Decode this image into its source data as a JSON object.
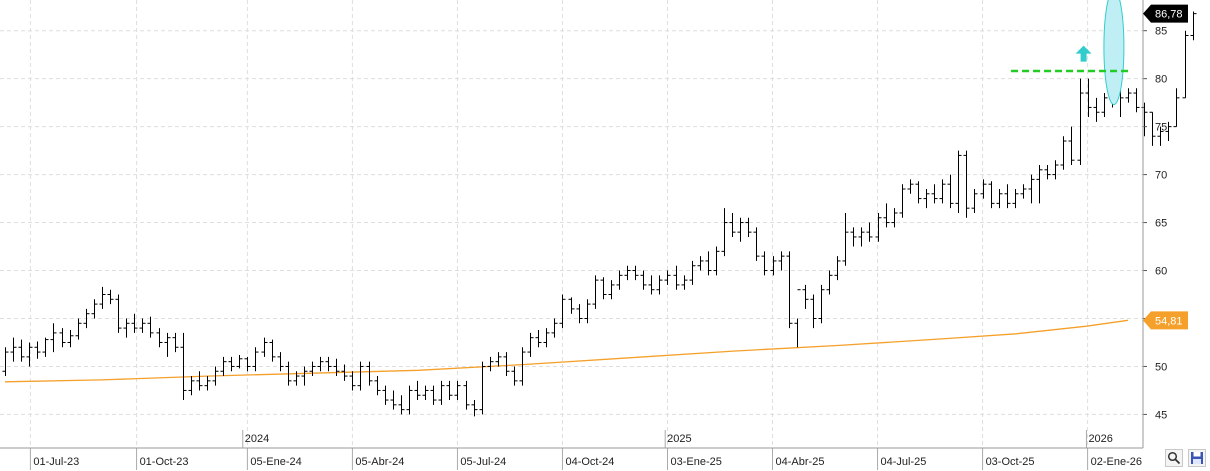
{
  "chart_data": {
    "type": "bar",
    "subtype": "ohlc-weekly",
    "y_axis": {
      "position": "right",
      "ylim": [
        41.5,
        88.2
      ],
      "ticks": [
        45,
        50,
        55,
        60,
        65,
        70,
        75,
        80,
        85
      ]
    },
    "x_axis": {
      "tick_labels": [
        "01-Jul-23",
        "01-Oct-23",
        "05-Ene-24",
        "05-Abr-24",
        "05-Jul-24",
        "04-Oct-24",
        "03-Ene-25",
        "04-Abr-25",
        "04-Jul-25",
        "03-Oct-25",
        "02-Ene-26"
      ],
      "year_labels": [
        "2024",
        "2025",
        "2026"
      ],
      "start": "2023-06-09",
      "end": "2026-02-06"
    },
    "grid": true,
    "last_price": {
      "label": "86,78",
      "value": 86.78,
      "color": "#000000"
    },
    "moving_average": {
      "label": "54,81",
      "value": 54.81,
      "color": "#f5a02a",
      "points": [
        {
          "x": "2023-06-09",
          "y": 48.4
        },
        {
          "x": "2023-09-01",
          "y": 48.6
        },
        {
          "x": "2023-12-01",
          "y": 49.0
        },
        {
          "x": "2024-03-01",
          "y": 49.3
        },
        {
          "x": "2024-06-01",
          "y": 49.6
        },
        {
          "x": "2024-09-01",
          "y": 50.2
        },
        {
          "x": "2024-12-01",
          "y": 50.9
        },
        {
          "x": "2025-03-01",
          "y": 51.6
        },
        {
          "x": "2025-06-01",
          "y": 52.2
        },
        {
          "x": "2025-09-01",
          "y": 52.9
        },
        {
          "x": "2025-11-01",
          "y": 53.4
        },
        {
          "x": "2026-01-01",
          "y": 54.2
        },
        {
          "x": "2026-02-06",
          "y": 54.81
        }
      ]
    },
    "bars_x": {
      "start": "2023-06-09",
      "interval_days": 7
    },
    "bars": [
      [
        49.5,
        52.0,
        49.0,
        51.5
      ],
      [
        51.5,
        53.0,
        50.5,
        52.0
      ],
      [
        52.0,
        52.8,
        50.5,
        51.0
      ],
      [
        51.0,
        52.5,
        50.0,
        52.0
      ],
      [
        52.0,
        52.6,
        50.8,
        51.5
      ],
      [
        51.5,
        53.0,
        51.0,
        52.8
      ],
      [
        52.8,
        54.5,
        51.5,
        53.5
      ],
      [
        53.5,
        54.0,
        52.0,
        52.5
      ],
      [
        52.5,
        53.8,
        52.0,
        53.2
      ],
      [
        53.2,
        55.0,
        52.8,
        54.5
      ],
      [
        54.5,
        56.0,
        54.0,
        55.5
      ],
      [
        55.5,
        57.0,
        55.0,
        56.5
      ],
      [
        56.5,
        58.3,
        56.0,
        57.5
      ],
      [
        57.5,
        58.0,
        56.5,
        57.0
      ],
      [
        57.0,
        57.5,
        53.5,
        54.0
      ],
      [
        54.0,
        55.0,
        53.0,
        54.5
      ],
      [
        54.5,
        55.5,
        53.5,
        54.0
      ],
      [
        54.0,
        55.0,
        53.5,
        54.5
      ],
      [
        54.5,
        55.2,
        53.0,
        53.5
      ],
      [
        53.5,
        54.0,
        52.0,
        52.5
      ],
      [
        52.5,
        53.5,
        51.0,
        53.0
      ],
      [
        53.0,
        53.5,
        51.5,
        52.0
      ],
      [
        52.0,
        53.5,
        46.5,
        47.5
      ],
      [
        47.5,
        49.0,
        47.0,
        48.5
      ],
      [
        48.5,
        49.5,
        47.5,
        48.0
      ],
      [
        48.0,
        49.0,
        47.5,
        48.5
      ],
      [
        48.5,
        50.0,
        48.0,
        49.5
      ],
      [
        49.5,
        51.0,
        49.0,
        50.5
      ],
      [
        50.5,
        51.0,
        49.5,
        50.0
      ],
      [
        50.0,
        51.2,
        49.8,
        50.8
      ],
      [
        50.8,
        51.0,
        49.5,
        50.0
      ],
      [
        50.0,
        52.0,
        49.5,
        51.5
      ],
      [
        51.5,
        53.0,
        51.0,
        52.5
      ],
      [
        52.5,
        52.8,
        50.5,
        51.0
      ],
      [
        51.0,
        51.5,
        49.5,
        50.0
      ],
      [
        50.0,
        50.5,
        48.0,
        48.5
      ],
      [
        48.5,
        49.5,
        48.0,
        49.0
      ],
      [
        49.0,
        50.0,
        48.0,
        49.5
      ],
      [
        49.5,
        50.5,
        49.0,
        50.0
      ],
      [
        50.0,
        51.0,
        49.5,
        50.5
      ],
      [
        50.5,
        51.0,
        49.5,
        50.0
      ],
      [
        50.0,
        50.8,
        49.0,
        49.5
      ],
      [
        49.5,
        50.2,
        48.5,
        49.0
      ],
      [
        49.0,
        49.5,
        47.5,
        48.0
      ],
      [
        48.0,
        50.5,
        47.5,
        50.0
      ],
      [
        50.0,
        50.5,
        48.0,
        48.5
      ],
      [
        48.5,
        49.0,
        47.0,
        47.5
      ],
      [
        47.5,
        48.0,
        46.0,
        46.5
      ],
      [
        46.5,
        47.5,
        45.5,
        46.0
      ],
      [
        46.0,
        47.0,
        45.0,
        45.5
      ],
      [
        45.5,
        48.0,
        45.0,
        47.5
      ],
      [
        47.5,
        48.5,
        46.5,
        47.0
      ],
      [
        47.0,
        48.0,
        46.5,
        47.5
      ],
      [
        47.5,
        48.0,
        46.0,
        46.5
      ],
      [
        46.5,
        48.5,
        46.0,
        48.0
      ],
      [
        48.0,
        48.5,
        46.5,
        47.0
      ],
      [
        47.0,
        48.5,
        46.5,
        48.0
      ],
      [
        48.0,
        48.5,
        45.5,
        46.0
      ],
      [
        46.0,
        46.5,
        44.8,
        45.5
      ],
      [
        45.5,
        50.5,
        45.0,
        50.0
      ],
      [
        50.0,
        51.0,
        49.5,
        50.5
      ],
      [
        50.5,
        51.5,
        50.0,
        51.0
      ],
      [
        51.0,
        51.5,
        49.0,
        49.5
      ],
      [
        49.5,
        50.0,
        48.0,
        48.5
      ],
      [
        48.5,
        52.0,
        48.0,
        51.5
      ],
      [
        51.5,
        53.5,
        51.0,
        53.0
      ],
      [
        53.0,
        53.8,
        52.0,
        52.5
      ],
      [
        52.5,
        54.0,
        52.0,
        53.5
      ],
      [
        53.5,
        55.0,
        53.0,
        54.5
      ],
      [
        54.5,
        57.5,
        54.0,
        57.0
      ],
      [
        57.0,
        57.2,
        55.5,
        56.0
      ],
      [
        56.0,
        56.5,
        54.5,
        55.0
      ],
      [
        55.0,
        57.0,
        54.5,
        56.5
      ],
      [
        56.5,
        59.5,
        56.0,
        59.0
      ],
      [
        59.0,
        59.3,
        57.0,
        57.5
      ],
      [
        57.5,
        59.0,
        57.0,
        58.5
      ],
      [
        58.5,
        60.0,
        58.0,
        59.5
      ],
      [
        59.5,
        60.5,
        59.0,
        60.0
      ],
      [
        60.0,
        60.5,
        59.0,
        59.5
      ],
      [
        59.5,
        60.0,
        58.0,
        58.5
      ],
      [
        58.5,
        59.5,
        57.5,
        58.0
      ],
      [
        58.0,
        59.5,
        57.5,
        59.0
      ],
      [
        59.0,
        60.0,
        58.5,
        59.5
      ],
      [
        59.5,
        60.5,
        58.0,
        58.5
      ],
      [
        58.5,
        59.5,
        58.0,
        59.0
      ],
      [
        59.0,
        61.0,
        58.5,
        60.5
      ],
      [
        60.5,
        61.5,
        60.0,
        61.0
      ],
      [
        61.0,
        62.0,
        59.5,
        60.0
      ],
      [
        60.0,
        62.5,
        59.5,
        62.0
      ],
      [
        62.0,
        66.5,
        61.5,
        65.0
      ],
      [
        65.0,
        66.0,
        63.5,
        64.0
      ],
      [
        64.0,
        65.5,
        63.0,
        65.0
      ],
      [
        65.0,
        65.5,
        63.5,
        64.0
      ],
      [
        64.0,
        64.5,
        61.0,
        61.5
      ],
      [
        61.5,
        62.0,
        59.5,
        60.0
      ],
      [
        60.0,
        61.5,
        59.5,
        61.0
      ],
      [
        61.0,
        62.0,
        60.0,
        61.5
      ],
      [
        61.5,
        62.0,
        54.0,
        54.5
      ],
      [
        54.5,
        55.0,
        52.0,
        58.0
      ],
      [
        58.0,
        58.5,
        56.0,
        57.0
      ],
      [
        57.0,
        57.5,
        54.0,
        55.0
      ],
      [
        55.0,
        58.5,
        54.5,
        58.0
      ],
      [
        58.0,
        60.0,
        57.5,
        59.5
      ],
      [
        59.5,
        61.5,
        59.0,
        61.0
      ],
      [
        61.0,
        66.0,
        60.5,
        64.0
      ],
      [
        64.0,
        64.5,
        62.5,
        63.5
      ],
      [
        63.5,
        64.5,
        62.5,
        64.0
      ],
      [
        64.0,
        65.0,
        63.0,
        63.5
      ],
      [
        63.5,
        66.0,
        63.0,
        65.5
      ],
      [
        65.5,
        67.0,
        64.5,
        65.0
      ],
      [
        65.0,
        66.5,
        64.5,
        66.0
      ],
      [
        66.0,
        69.0,
        65.5,
        68.5
      ],
      [
        68.5,
        69.5,
        68.0,
        69.0
      ],
      [
        69.0,
        69.3,
        67.0,
        67.5
      ],
      [
        67.5,
        68.5,
        66.5,
        68.0
      ],
      [
        68.0,
        69.0,
        67.0,
        67.5
      ],
      [
        67.5,
        69.5,
        67.0,
        69.0
      ],
      [
        69.0,
        70.0,
        66.5,
        67.0
      ],
      [
        67.0,
        72.5,
        66.0,
        72.0
      ],
      [
        72.0,
        72.5,
        65.5,
        66.5
      ],
      [
        66.5,
        68.5,
        66.0,
        68.0
      ],
      [
        68.0,
        69.5,
        67.5,
        69.0
      ],
      [
        69.0,
        69.3,
        66.5,
        67.0
      ],
      [
        67.0,
        68.5,
        66.5,
        68.0
      ],
      [
        68.0,
        69.0,
        66.5,
        67.0
      ],
      [
        67.0,
        68.5,
        66.5,
        68.0
      ],
      [
        68.0,
        69.0,
        67.5,
        68.5
      ],
      [
        68.5,
        70.0,
        67.0,
        69.5
      ],
      [
        69.5,
        71.0,
        67.0,
        70.5
      ],
      [
        70.5,
        71.0,
        69.5,
        70.0
      ],
      [
        70.0,
        71.5,
        69.5,
        71.0
      ],
      [
        71.0,
        74.0,
        70.5,
        73.5
      ],
      [
        73.5,
        75.0,
        71.0,
        71.5
      ],
      [
        71.5,
        80.0,
        71.0,
        78.5
      ],
      [
        78.5,
        80.0,
        76.0,
        77.0
      ],
      [
        77.0,
        78.0,
        75.5,
        76.5
      ],
      [
        76.5,
        78.5,
        76.0,
        78.0
      ],
      [
        78.0,
        80.5,
        77.0,
        78.5
      ],
      [
        78.5,
        79.5,
        76.0,
        78.0
      ],
      [
        78.0,
        79.0,
        77.5,
        78.5
      ],
      [
        78.5,
        79.0,
        76.5,
        77.0
      ],
      [
        77.0,
        77.5,
        74.0,
        76.5
      ],
      [
        76.5,
        76.5,
        73.0,
        74.0
      ],
      [
        74.0,
        75.0,
        73.0,
        74.5
      ],
      [
        74.5,
        75.5,
        73.5,
        75.0
      ],
      [
        75.0,
        79.0,
        75.0,
        78.0
      ],
      [
        78.0,
        85.0,
        78.0,
        84.5
      ],
      [
        84.5,
        87.0,
        84.0,
        86.78
      ]
    ],
    "annotations": {
      "resistance_line": {
        "y": 80.8,
        "x_start": "2025-11-01",
        "x_end": "2026-02-06",
        "style": "dashed",
        "color": "#22cc22"
      },
      "arrow": {
        "direction": "up",
        "color": "#33cccc",
        "x": "2026-01-02",
        "y": 82.5
      },
      "highlight_ellipse": {
        "color": "#33cccc",
        "x": "2026-01-30",
        "y_center": 83.3,
        "y_radius": 6.0
      }
    }
  },
  "buttons": {
    "zoom_icon": "zoom-icon",
    "save_icon": "save-icon"
  },
  "colors": {
    "grid": "#dedede",
    "bars": "#000000",
    "price_tag_bg": "#000000",
    "ma_tag_bg": "#f5a02a",
    "arrow": "#33cccc",
    "ellipse_fill": "#bfeff5",
    "resistance": "#22cc22"
  }
}
